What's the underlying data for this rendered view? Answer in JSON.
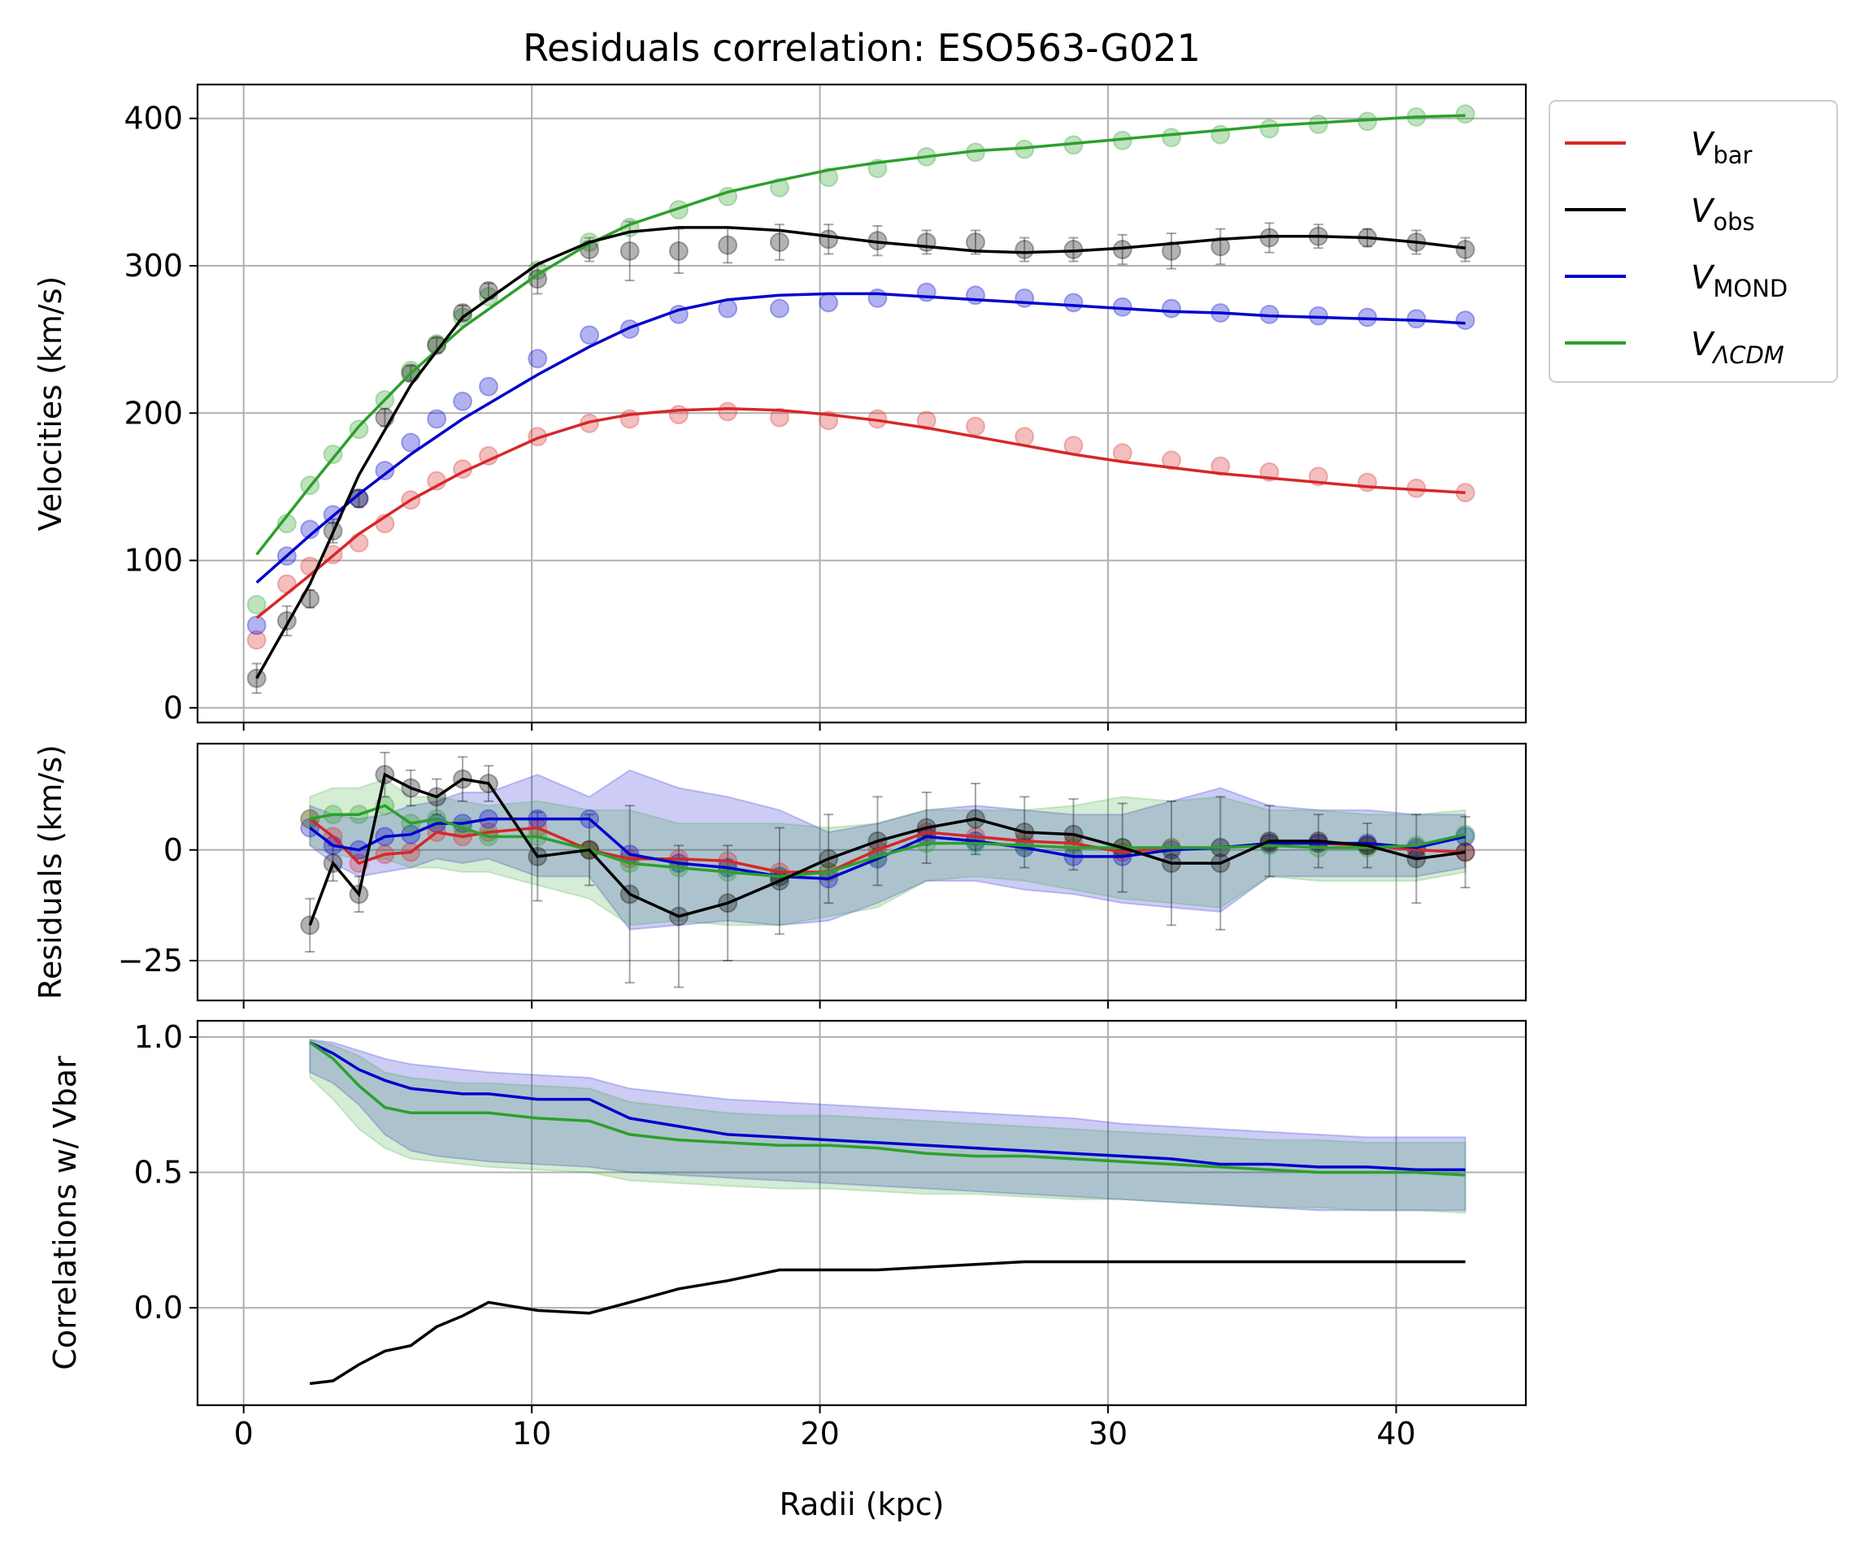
{
  "title": "Residuals correlation: ESO563-G021",
  "colors": {
    "bar": "#d62728",
    "obs": "#000000",
    "mond": "#0000cc",
    "lcdm": "#2ca02c",
    "grid": "#b0b0b0"
  },
  "legend": {
    "placement": "outside-top-right",
    "entries": [
      {
        "key": "bar",
        "base": "V",
        "sub": "bar",
        "sub_italic": false
      },
      {
        "key": "obs",
        "base": "V",
        "sub": "obs",
        "sub_italic": false
      },
      {
        "key": "mond",
        "base": "V",
        "sub": "MOND",
        "sub_italic": false
      },
      {
        "key": "lcdm",
        "base": "V",
        "sub": "ΛCDM",
        "sub_italic": true
      }
    ]
  },
  "chart_data": [
    {
      "type": "line",
      "panel": "velocities",
      "ylabel": "Velocities (km/s)",
      "xlim": [
        -1.6,
        44.5
      ],
      "ylim": [
        -10,
        423
      ],
      "grid": true,
      "xticks": [
        0,
        10,
        20,
        30,
        40
      ],
      "yticks": [
        0,
        100,
        200,
        300,
        400
      ],
      "points": {
        "x": [
          0.45,
          1.5,
          2.3,
          3.1,
          4.0,
          4.9,
          5.8,
          6.7,
          7.6,
          8.5,
          10.2,
          12.0,
          13.4,
          15.1,
          16.8,
          18.6,
          20.3,
          22.0,
          23.7,
          25.4,
          27.1,
          28.8,
          30.5,
          32.2,
          33.9,
          35.6,
          37.3,
          39.0,
          40.7,
          42.4
        ],
        "bar": [
          46,
          84,
          96,
          104,
          112,
          125,
          141,
          154,
          162,
          171,
          184,
          193,
          196,
          199,
          201,
          197,
          195,
          196,
          195,
          191,
          184,
          178,
          173,
          168,
          164,
          160,
          157,
          153,
          149,
          146
        ],
        "mond": [
          56,
          103,
          121,
          131,
          142,
          161,
          180,
          196,
          208,
          218,
          237,
          253,
          257,
          267,
          271,
          271,
          275,
          278,
          282,
          280,
          278,
          275,
          272,
          271,
          268,
          267,
          266,
          265,
          264,
          263
        ],
        "lcdm": [
          70,
          125,
          151,
          172,
          189,
          209,
          229,
          247,
          265,
          279,
          297,
          316,
          326,
          338,
          347,
          353,
          360,
          366,
          374,
          377,
          379,
          382,
          385,
          387,
          389,
          393,
          396,
          398,
          401,
          403
        ],
        "obs": [
          20,
          59,
          74,
          120,
          142,
          197,
          227,
          246,
          268,
          283,
          291,
          311,
          310,
          310,
          314,
          316,
          318,
          317,
          316,
          316,
          311,
          311,
          311,
          310,
          313,
          319,
          320,
          319,
          316,
          311
        ],
        "obs_err": [
          10,
          10,
          6,
          8,
          6,
          6,
          5,
          5,
          5,
          5,
          10,
          8,
          20,
          15,
          12,
          12,
          10,
          10,
          8,
          8,
          8,
          8,
          10,
          12,
          12,
          10,
          8,
          6,
          8,
          8
        ]
      },
      "curves": {
        "x": [
          0.45,
          2.3,
          4.0,
          5.8,
          7.6,
          10.2,
          12.0,
          13.4,
          15.1,
          16.8,
          18.6,
          20.3,
          22.0,
          23.7,
          25.4,
          27.1,
          28.8,
          30.5,
          32.2,
          33.9,
          35.6,
          37.3,
          39.0,
          40.7,
          42.4
        ],
        "bar": [
          61,
          90,
          118,
          141,
          160,
          183,
          194,
          199,
          202,
          203,
          202,
          199,
          195,
          190,
          184,
          178,
          172,
          167,
          163,
          159,
          156,
          153,
          150,
          148,
          146
        ],
        "mond": [
          85,
          117,
          145,
          172,
          196,
          226,
          245,
          258,
          270,
          277,
          280,
          281,
          281,
          279,
          277,
          275,
          273,
          271,
          269,
          268,
          266,
          265,
          264,
          263,
          261
        ],
        "lcdm": [
          104,
          150,
          191,
          227,
          258,
          294,
          315,
          328,
          339,
          350,
          358,
          365,
          370,
          374,
          378,
          380,
          383,
          386,
          389,
          392,
          395,
          397,
          399,
          401,
          402
        ],
        "obs": [
          20,
          84,
          158,
          219,
          265,
          301,
          316,
          323,
          326,
          326,
          324,
          320,
          316,
          313,
          310,
          309,
          310,
          312,
          315,
          318,
          320,
          320,
          319,
          316,
          312
        ]
      }
    },
    {
      "type": "line",
      "panel": "residuals",
      "ylabel": "Residuals (km/s)",
      "xlim": [
        -1.6,
        44.5
      ],
      "ylim": [
        -34,
        24
      ],
      "grid": true,
      "yticks": [
        -25,
        0
      ],
      "x": [
        2.3,
        3.1,
        4.0,
        4.9,
        5.8,
        6.7,
        7.6,
        8.5,
        10.2,
        12.0,
        13.4,
        15.1,
        16.8,
        18.6,
        20.3,
        22.0,
        23.7,
        25.4,
        27.1,
        28.8,
        30.5,
        32.2,
        33.9,
        35.6,
        37.3,
        39.0,
        40.7,
        42.4
      ],
      "bar": [
        7,
        3,
        -3,
        -1,
        -0.5,
        4,
        3,
        4,
        5,
        0,
        -2,
        -2,
        -2.5,
        -5,
        -5,
        0,
        4,
        3,
        2,
        1.5,
        -0.5,
        0.5,
        0.5,
        1.5,
        1.5,
        1,
        0,
        -0.5
      ],
      "mond": [
        5,
        1,
        0,
        3,
        3.5,
        6,
        6,
        7,
        7,
        7,
        -1,
        -3,
        -4,
        -6,
        -6.5,
        -2,
        3,
        2,
        0.5,
        -1.5,
        -1.5,
        0,
        0.5,
        1.5,
        1.5,
        1.5,
        0.5,
        3
      ],
      "lcdm": [
        7,
        8,
        8,
        10,
        6,
        7,
        5,
        3,
        3,
        0,
        -3,
        -4,
        -5,
        -6,
        -5,
        -1.5,
        1.5,
        1.5,
        1,
        0.5,
        0.5,
        0.5,
        0.5,
        1,
        0.5,
        0.5,
        1,
        3.5
      ],
      "obs": [
        -17,
        -3,
        -10,
        17,
        14,
        12,
        16,
        15,
        -1.5,
        0,
        -10,
        -15,
        -12,
        -7,
        -2,
        2,
        5,
        7,
        4,
        3.5,
        0.5,
        -3,
        -3,
        2,
        2,
        1,
        -2,
        -0.5
      ],
      "obs_err": [
        6,
        4,
        4,
        5,
        4,
        4,
        5,
        4,
        10,
        8,
        20,
        16,
        13,
        12,
        10,
        10,
        8,
        8,
        8,
        8,
        10,
        14,
        15,
        8,
        6,
        5,
        10,
        8
      ],
      "band_mond": {
        "lo": [
          1,
          -3,
          -6,
          -5,
          -4,
          -2,
          -3,
          -2,
          -6,
          -6,
          -18,
          -17,
          -16,
          -17,
          -16,
          -12,
          -7,
          -7,
          -9,
          -10,
          -12,
          -13,
          -14,
          -6,
          -6,
          -6,
          -6,
          -4
        ],
        "hi": [
          10,
          8,
          7,
          8,
          10,
          11,
          13,
          13,
          17,
          12,
          18,
          14,
          12,
          9,
          4,
          6,
          9,
          10,
          9,
          8,
          8,
          11,
          14,
          10,
          9,
          9,
          8,
          8
        ]
      },
      "band_lcdm": {
        "lo": [
          1,
          -1,
          -2,
          -2,
          -4,
          -4,
          -5,
          -5,
          -8,
          -11,
          -17,
          -16,
          -17,
          -17,
          -15,
          -13,
          -7,
          -6,
          -7,
          -9,
          -11,
          -12,
          -13,
          -6,
          -7,
          -7,
          -7,
          -5
        ],
        "hi": [
          12,
          14,
          14,
          16,
          12,
          12,
          11,
          10,
          11,
          9,
          9,
          6,
          6,
          6,
          5,
          6,
          9,
          9,
          9,
          10,
          12,
          11,
          12,
          9,
          9,
          8,
          8,
          9
        ]
      }
    },
    {
      "type": "line",
      "panel": "correlations",
      "ylabel": "Correlations w/ Vbar",
      "xlabel": "Radii (kpc)",
      "xlim": [
        -1.6,
        44.5
      ],
      "ylim": [
        -0.36,
        1.06
      ],
      "grid": true,
      "xticks": [
        0,
        10,
        20,
        30,
        40
      ],
      "yticks": [
        0.0,
        0.5,
        1.0
      ],
      "x": [
        2.3,
        3.1,
        4.0,
        4.9,
        5.8,
        6.7,
        7.6,
        8.5,
        10.2,
        12.0,
        13.4,
        15.1,
        16.8,
        18.6,
        20.3,
        22.0,
        23.7,
        25.4,
        27.1,
        28.8,
        30.5,
        32.2,
        33.9,
        35.6,
        37.3,
        39.0,
        40.7,
        42.4
      ],
      "mond": [
        0.98,
        0.94,
        0.88,
        0.84,
        0.81,
        0.8,
        0.79,
        0.79,
        0.77,
        0.77,
        0.7,
        0.67,
        0.64,
        0.63,
        0.62,
        0.61,
        0.6,
        0.59,
        0.58,
        0.57,
        0.56,
        0.55,
        0.53,
        0.53,
        0.52,
        0.52,
        0.51,
        0.51
      ],
      "lcdm": [
        0.98,
        0.92,
        0.82,
        0.74,
        0.72,
        0.72,
        0.72,
        0.72,
        0.7,
        0.69,
        0.64,
        0.62,
        0.61,
        0.6,
        0.6,
        0.59,
        0.57,
        0.56,
        0.56,
        0.55,
        0.54,
        0.53,
        0.52,
        0.51,
        0.5,
        0.5,
        0.5,
        0.49
      ],
      "obs": [
        -0.28,
        -0.27,
        -0.21,
        -0.16,
        -0.14,
        -0.07,
        -0.03,
        0.02,
        -0.01,
        -0.02,
        0.02,
        0.07,
        0.1,
        0.14,
        0.14,
        0.14,
        0.15,
        0.16,
        0.17,
        0.17,
        0.17,
        0.17,
        0.17,
        0.17,
        0.17,
        0.17,
        0.17,
        0.17
      ],
      "band_mond": {
        "lo": [
          0.87,
          0.83,
          0.75,
          0.64,
          0.58,
          0.56,
          0.55,
          0.54,
          0.53,
          0.52,
          0.5,
          0.49,
          0.48,
          0.47,
          0.46,
          0.45,
          0.44,
          0.43,
          0.42,
          0.41,
          0.4,
          0.39,
          0.38,
          0.37,
          0.36,
          0.36,
          0.36,
          0.36
        ],
        "hi": [
          0.99,
          0.98,
          0.95,
          0.92,
          0.9,
          0.89,
          0.88,
          0.87,
          0.86,
          0.85,
          0.81,
          0.79,
          0.77,
          0.76,
          0.75,
          0.74,
          0.73,
          0.72,
          0.71,
          0.7,
          0.68,
          0.67,
          0.66,
          0.65,
          0.64,
          0.63,
          0.63,
          0.63
        ]
      },
      "band_lcdm": {
        "lo": [
          0.85,
          0.77,
          0.66,
          0.59,
          0.55,
          0.54,
          0.53,
          0.52,
          0.51,
          0.5,
          0.47,
          0.46,
          0.45,
          0.44,
          0.44,
          0.43,
          0.42,
          0.42,
          0.41,
          0.4,
          0.4,
          0.39,
          0.38,
          0.37,
          0.37,
          0.36,
          0.36,
          0.35
        ],
        "hi": [
          0.99,
          0.97,
          0.93,
          0.87,
          0.85,
          0.84,
          0.83,
          0.83,
          0.82,
          0.81,
          0.76,
          0.74,
          0.72,
          0.71,
          0.71,
          0.7,
          0.69,
          0.68,
          0.67,
          0.66,
          0.65,
          0.64,
          0.63,
          0.62,
          0.62,
          0.61,
          0.61,
          0.61
        ]
      }
    }
  ]
}
